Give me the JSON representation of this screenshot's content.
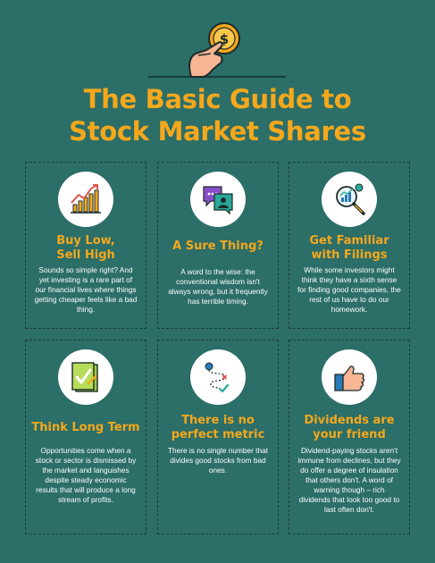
{
  "title": {
    "line1": "The Basic Guide to",
    "line2": "Stock Market Shares"
  },
  "cards": [
    {
      "title1": "Buy Low,",
      "title2": "Sell High",
      "body": "Sounds so simple right? And yet investing is a rare part of our financial lives where things getting cheaper feels like a bad thing.",
      "icon": "rising-chart-icon"
    },
    {
      "title1": "A Sure Thing?",
      "body": "A word to the wise: the conventional wisdom isn't always wrong, but it frequently has terrible timing.",
      "icon": "chat-bubbles-icon"
    },
    {
      "title1": "Get Familiar",
      "title2": "with Filings",
      "body": "While some investors might think they have a sixth sense for finding good companies, the rest of us have to do our homework.",
      "icon": "magnifier-chart-icon"
    },
    {
      "title1": "Think Long Term",
      "body": "Opportunities come when a stock or sector is dismissed by the market and languishes despite steady economic results that will produce a long stream of profits.",
      "icon": "checklist-icon"
    },
    {
      "title1": "There is no",
      "title2": "perfect metric",
      "body": "There is no single number that divides good stocks from bad ones.",
      "icon": "route-icon"
    },
    {
      "title1": "Dividends are",
      "title2": "your friend",
      "body": "Dividend-paying stocks aren't immune from declines, but they do offer a degree of insulation that others don't. A word of warning though – rich dividends that look too good to last often don't.",
      "icon": "thumbs-up-icon"
    }
  ],
  "hero": {
    "coin_symbol": "$"
  },
  "colors": {
    "background": "#2c6e68",
    "accent": "#f5a81c",
    "border": "#163f3b",
    "text": "#ffffff"
  }
}
